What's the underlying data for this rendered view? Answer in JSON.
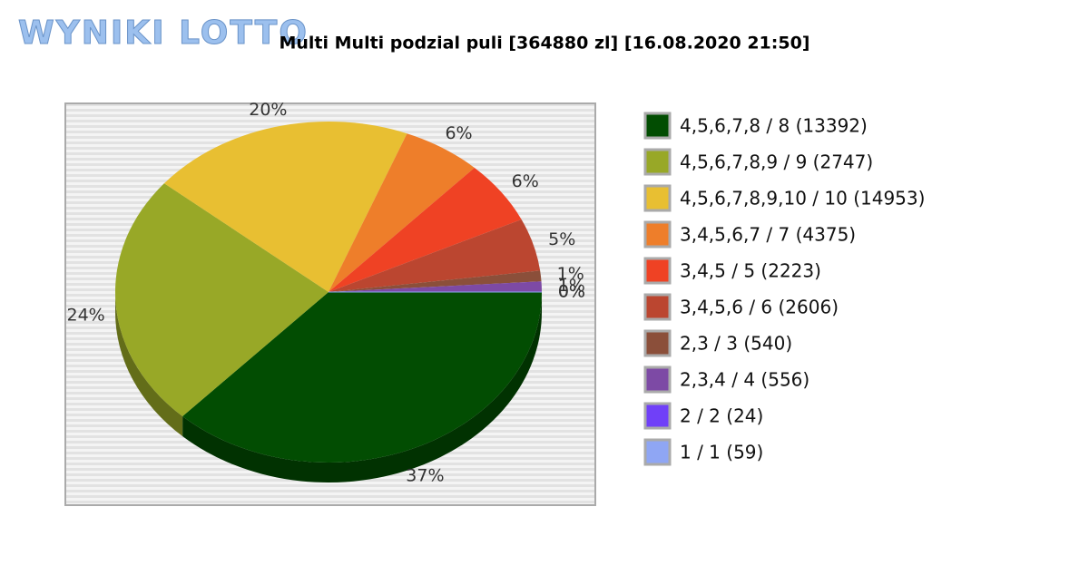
{
  "logo": "WYNIKI LOTTO",
  "chart_data": {
    "type": "pie",
    "title": "Multi Multi podzial puli [364880 zl] [16.08.2020 21:50]",
    "categories": [
      "4,5,6,7,8 / 8 (13392)",
      "4,5,6,7,8,9 / 9 (2747)",
      "4,5,6,7,8,9,10 / 10 (14953)",
      "3,4,5,6,7 / 7 (4375)",
      "3,4,5 / 5 (2223)",
      "3,4,5,6 / 6 (2606)",
      "2,3 / 3 (540)",
      "2,3,4 / 4 (556)",
      "2 / 2 (24)",
      "1 / 1 (59)"
    ],
    "values": [
      37,
      24,
      20,
      6,
      6,
      5,
      1,
      1,
      0,
      0
    ],
    "value_labels": [
      "37%",
      "24%",
      "20%",
      "6%",
      "6%",
      "5%",
      "1%",
      "1%",
      "0%",
      "0%"
    ],
    "colors": [
      "#024d02",
      "#98a827",
      "#e8bf32",
      "#ee7e2a",
      "#ef4224",
      "#bb4630",
      "#8b4f3a",
      "#7d4aa5",
      "#7040f8",
      "#8fa6f4"
    ],
    "legend": "right"
  }
}
